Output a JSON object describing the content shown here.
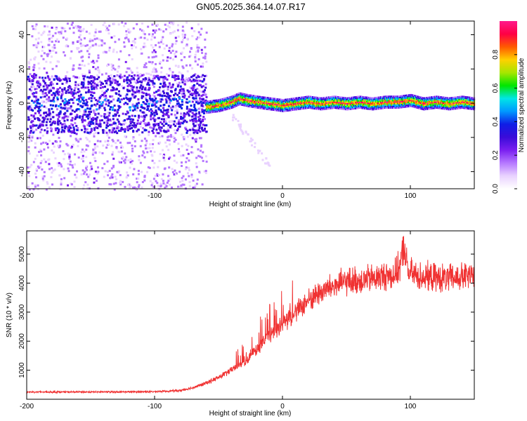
{
  "figure_title": "GN05.2025.364.14.07.R17",
  "chart_data": [
    {
      "type": "heatmap",
      "title": "GN05.2025.364.14.07.R17",
      "xlabel": "Height of straight line (km)",
      "ylabel": "Frequency (Hz)",
      "xlim": [
        -200,
        150
      ],
      "ylim": [
        -50,
        48
      ],
      "xticks": [
        -200,
        -100,
        0,
        100
      ],
      "yticks": [
        -40,
        -20,
        0,
        20,
        40
      ],
      "colorbar": {
        "label": "Normalized spectral amplitude",
        "range": [
          0.0,
          1.0
        ],
        "ticks": [
          0.0,
          0.2,
          0.4,
          0.6,
          0.8
        ],
        "tick_labels": [
          "0.0",
          "0.2",
          "0.4",
          "0.6",
          "0.8"
        ],
        "colormap": [
          "#ffffff",
          "#e9d2ff",
          "#b577ff",
          "#7a1ff0",
          "#3a0bd9",
          "#0f1ee6",
          "#0099ff",
          "#00e6e6",
          "#00e600",
          "#a6e600",
          "#ffd000",
          "#ff5a00",
          "#ff0044",
          "#ff1a8c"
        ]
      },
      "spectral_band": {
        "description": "Narrow high-amplitude band near 0 Hz for heights above about -60 km; broad diffuse scatter across all frequencies below about -60 km",
        "centerline": [
          {
            "x": -60,
            "y": -2
          },
          {
            "x": -50,
            "y": -1
          },
          {
            "x": -40,
            "y": 1
          },
          {
            "x": -34,
            "y": 3
          },
          {
            "x": -28,
            "y": 2
          },
          {
            "x": -20,
            "y": 1
          },
          {
            "x": -10,
            "y": 0
          },
          {
            "x": 0,
            "y": -1
          },
          {
            "x": 10,
            "y": 0
          },
          {
            "x": 20,
            "y": 1
          },
          {
            "x": 30,
            "y": 0
          },
          {
            "x": 40,
            "y": 1
          },
          {
            "x": 50,
            "y": 0
          },
          {
            "x": 60,
            "y": 1
          },
          {
            "x": 70,
            "y": 0
          },
          {
            "x": 80,
            "y": 1
          },
          {
            "x": 90,
            "y": 1
          },
          {
            "x": 100,
            "y": 2
          },
          {
            "x": 110,
            "y": 0
          },
          {
            "x": 120,
            "y": 1
          },
          {
            "x": 130,
            "y": 0
          },
          {
            "x": 140,
            "y": 1
          },
          {
            "x": 150,
            "y": 0
          }
        ],
        "diffuse_region_xlim": [
          -200,
          -60
        ]
      }
    },
    {
      "type": "line",
      "xlabel": "Height of straight line (km)",
      "ylabel": "SNR (10 * v/v)",
      "xlim": [
        -200,
        150
      ],
      "ylim": [
        0,
        5800
      ],
      "xticks": [
        -200,
        -100,
        0,
        100
      ],
      "yticks": [
        1000,
        2000,
        3000,
        4000,
        5000
      ],
      "series": [
        {
          "name": "SNR",
          "color": "#f03232",
          "noise_amplitude": 0.09,
          "x": [
            -200,
            -150,
            -100,
            -80,
            -70,
            -60,
            -50,
            -40,
            -30,
            -20,
            -10,
            0,
            10,
            20,
            30,
            40,
            50,
            60,
            70,
            80,
            88,
            92,
            95,
            98,
            105,
            115,
            130,
            150
          ],
          "values": [
            250,
            250,
            260,
            300,
            400,
            550,
            750,
            1000,
            1300,
            1700,
            2200,
            2600,
            3000,
            3400,
            3700,
            3900,
            4050,
            4100,
            4150,
            4250,
            4300,
            4600,
            5300,
            4400,
            4250,
            4200,
            4150,
            4250
          ]
        }
      ]
    }
  ]
}
